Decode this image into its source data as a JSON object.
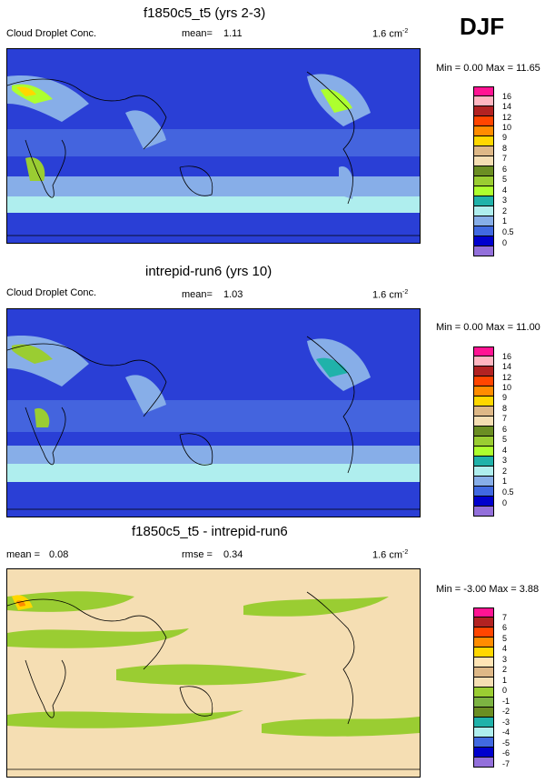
{
  "season": "DJF",
  "panels": [
    {
      "title": "f1850c5_t5 (yrs 2-3)",
      "left_label": "Cloud Droplet Conc.",
      "mean_label": "mean=",
      "mean_value": "1.11",
      "units_base": "1.6 cm",
      "units_exp": "-2",
      "min_label": "Min =",
      "min_value": "0.00",
      "max_label": "Max =",
      "max_value": "11.65",
      "background": "#2a3fd6",
      "levels": [
        "16",
        "14",
        "12",
        "10",
        "9",
        "8",
        "7",
        "6",
        "5",
        "4",
        "3",
        "2",
        "1",
        "0.5",
        "0"
      ],
      "colors": [
        "#ff1493",
        "#ffb6c1",
        "#b22222",
        "#ff4500",
        "#ff8c00",
        "#ffd700",
        "#deb887",
        "#f5deb3",
        "#6b8e23",
        "#9acd32",
        "#adff2f",
        "#20b2aa",
        "#afeeee",
        "#87aee8",
        "#4169e1",
        "#0000cd",
        "#9370db"
      ]
    },
    {
      "title": "intrepid-run6 (yrs 10)",
      "left_label": "Cloud Droplet Conc.",
      "mean_label": "mean=",
      "mean_value": "1.03",
      "units_base": "1.6 cm",
      "units_exp": "-2",
      "min_label": "Min =",
      "min_value": "0.00",
      "max_label": "Max =",
      "max_value": "11.00",
      "background": "#2a3fd6",
      "levels": [
        "16",
        "14",
        "12",
        "10",
        "9",
        "8",
        "7",
        "6",
        "5",
        "4",
        "3",
        "2",
        "1",
        "0.5",
        "0"
      ],
      "colors": [
        "#ff1493",
        "#ffb6c1",
        "#b22222",
        "#ff4500",
        "#ff8c00",
        "#ffd700",
        "#deb887",
        "#f5deb3",
        "#6b8e23",
        "#9acd32",
        "#adff2f",
        "#20b2aa",
        "#afeeee",
        "#87aee8",
        "#4169e1",
        "#0000cd",
        "#9370db"
      ]
    },
    {
      "title": "f1850c5_t5 - intrepid-run6",
      "left_label": "mean =",
      "left_value": "0.08",
      "mean_label": "rmse =",
      "mean_value": "0.34",
      "units_base": "1.6 cm",
      "units_exp": "-2",
      "min_label": "Min =",
      "min_value": "-3.00",
      "max_label": "Max =",
      "max_value": "3.88",
      "background": "#f5deb3",
      "levels": [
        "7",
        "6",
        "5",
        "4",
        "3",
        "2",
        "1",
        "0",
        "-1",
        "-2",
        "-3",
        "-4",
        "-5",
        "-6",
        "-7"
      ],
      "colors": [
        "#ff1493",
        "#b22222",
        "#ff4500",
        "#ff8c00",
        "#ffd700",
        "#ffe4b5",
        "#deb887",
        "#f5deb3",
        "#9acd32",
        "#7cb342",
        "#6b8e23",
        "#20b2aa",
        "#afeeee",
        "#4169e1",
        "#0000cd",
        "#9370db"
      ]
    }
  ]
}
